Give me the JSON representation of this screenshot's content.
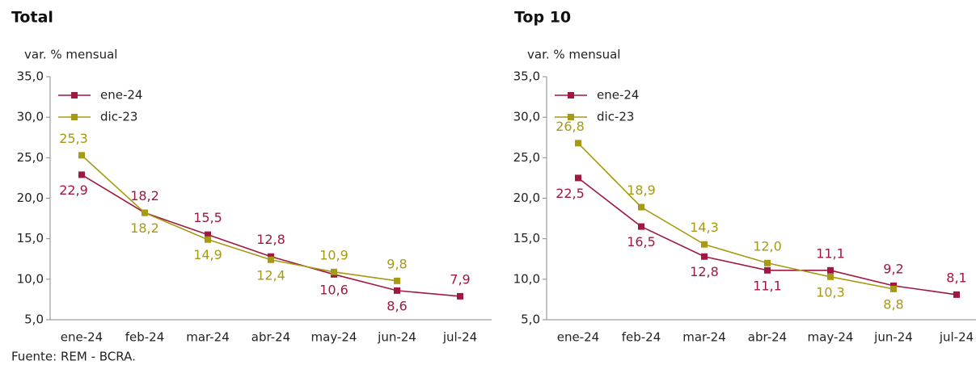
{
  "chart_data": [
    {
      "type": "line",
      "title": "Total",
      "y_label": "var. % mensual",
      "categories": [
        "ene-24",
        "feb-24",
        "mar-24",
        "abr-24",
        "may-24",
        "jun-24",
        "jul-24"
      ],
      "series": [
        {
          "name": "ene-24",
          "color": "#a0173f",
          "values": [
            22.9,
            18.2,
            15.5,
            12.8,
            10.6,
            8.6,
            7.9
          ],
          "value_labels": [
            "22,9",
            "18,2",
            "15,5",
            "12,8",
            "10,6",
            "8,6",
            "7,9"
          ]
        },
        {
          "name": "dic-23",
          "color": "#a69a12",
          "values": [
            25.3,
            18.2,
            14.9,
            12.4,
            10.9,
            9.8,
            null
          ],
          "value_labels": [
            "25,3",
            "18,2",
            "14,9",
            "12,4",
            "10,9",
            "9,8",
            null
          ]
        }
      ],
      "ylim": [
        5,
        35
      ],
      "yticks": [
        {
          "value": 5,
          "label": "5,0"
        },
        {
          "value": 10,
          "label": "10,0"
        },
        {
          "value": 15,
          "label": "15,0"
        },
        {
          "value": 20,
          "label": "20,0"
        },
        {
          "value": 25,
          "label": "25,0"
        },
        {
          "value": 30,
          "label": "30,0"
        },
        {
          "value": 35,
          "label": "35,0"
        }
      ],
      "grid": false,
      "legend": "top-left"
    },
    {
      "type": "line",
      "title": "Top 10",
      "y_label": "var. % mensual",
      "categories": [
        "ene-24",
        "feb-24",
        "mar-24",
        "abr-24",
        "may-24",
        "jun-24",
        "jul-24"
      ],
      "series": [
        {
          "name": "ene-24",
          "color": "#a0173f",
          "values": [
            22.5,
            16.5,
            12.8,
            11.1,
            11.1,
            9.2,
            8.1
          ],
          "value_labels": [
            "22,5",
            "16,5",
            "12,8",
            "11,1",
            "11,1",
            "9,2",
            "8,1"
          ]
        },
        {
          "name": "dic-23",
          "color": "#a69a12",
          "values": [
            26.8,
            18.9,
            14.3,
            12.0,
            10.3,
            8.8,
            null
          ],
          "value_labels": [
            "26,8",
            "18,9",
            "14,3",
            "12,0",
            "10,3",
            "8,8",
            null
          ]
        }
      ],
      "ylim": [
        5,
        35
      ],
      "yticks": [
        {
          "value": 5,
          "label": "5,0"
        },
        {
          "value": 10,
          "label": "10,0"
        },
        {
          "value": 15,
          "label": "15,0"
        },
        {
          "value": 20,
          "label": "20,0"
        },
        {
          "value": 25,
          "label": "25,0"
        },
        {
          "value": 30,
          "label": "30,0"
        },
        {
          "value": 35,
          "label": "35,0"
        }
      ],
      "grid": false,
      "legend": "top-left"
    }
  ],
  "source": "Fuente: REM - BCRA."
}
